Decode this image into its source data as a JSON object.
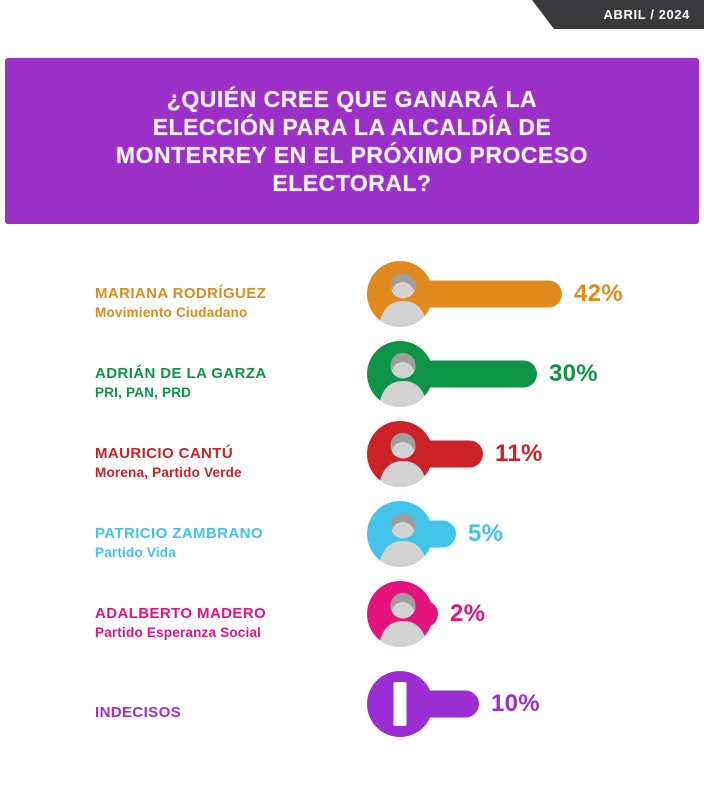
{
  "badge": {
    "label": "ABRIL / 2024",
    "background_color": "#3a393b"
  },
  "header": {
    "question": "¿QUIÉN CREE QUE GANARÁ LA\nELECCIÓN PARA LA ALCALDÍA DE\nMONTERREY EN EL PRÓXIMO PROCESO\nELECTORAL?",
    "background_color": "#9b30c9",
    "text_color": "#faf3fa"
  },
  "chart_data": {
    "type": "bar",
    "title": "¿Quién cree que ganará la elección para la alcaldía de Monterrey en el próximo proceso electoral?",
    "unit": "%",
    "orientation": "horizontal",
    "categories": [
      "Mariana Rodríguez",
      "Adrián de la Garza",
      "Mauricio Cantú",
      "Patricio Zambrano",
      "Adalberto Madero",
      "Indecisos"
    ],
    "values": [
      42,
      30,
      11,
      5,
      2,
      10
    ],
    "rows": [
      {
        "name": "MARIANA RODRÍGUEZ",
        "party": "Movimiento Ciudadano",
        "value": 42,
        "value_label": "42%",
        "color": "#e2891d",
        "avatar": "photo-woman"
      },
      {
        "name": "ADRIÁN DE LA GARZA",
        "party": "PRI, PAN, PRD",
        "value": 30,
        "value_label": "30%",
        "color": "#0e9447",
        "avatar": "photo-man"
      },
      {
        "name": "MAURICIO CANTÚ",
        "party": "Morena, Partido Verde",
        "value": 11,
        "value_label": "11%",
        "color": "#cb2127",
        "avatar": "photo-man"
      },
      {
        "name": "PATRICIO ZAMBRANO",
        "party": "Partido Vida",
        "value": 5,
        "value_label": "5%",
        "color": "#41c3ea",
        "avatar": "photo-man"
      },
      {
        "name": "ADALBERTO MADERO",
        "party": "Partido Esperanza Social",
        "value": 2,
        "value_label": "2%",
        "color": "#e5137d",
        "avatar": "photo-man"
      },
      {
        "name": "INDECISOS",
        "party": "",
        "value": 10,
        "value_label": "10%",
        "color": "#9a2ed2",
        "avatar": "letter-I",
        "letter": "I"
      }
    ]
  }
}
